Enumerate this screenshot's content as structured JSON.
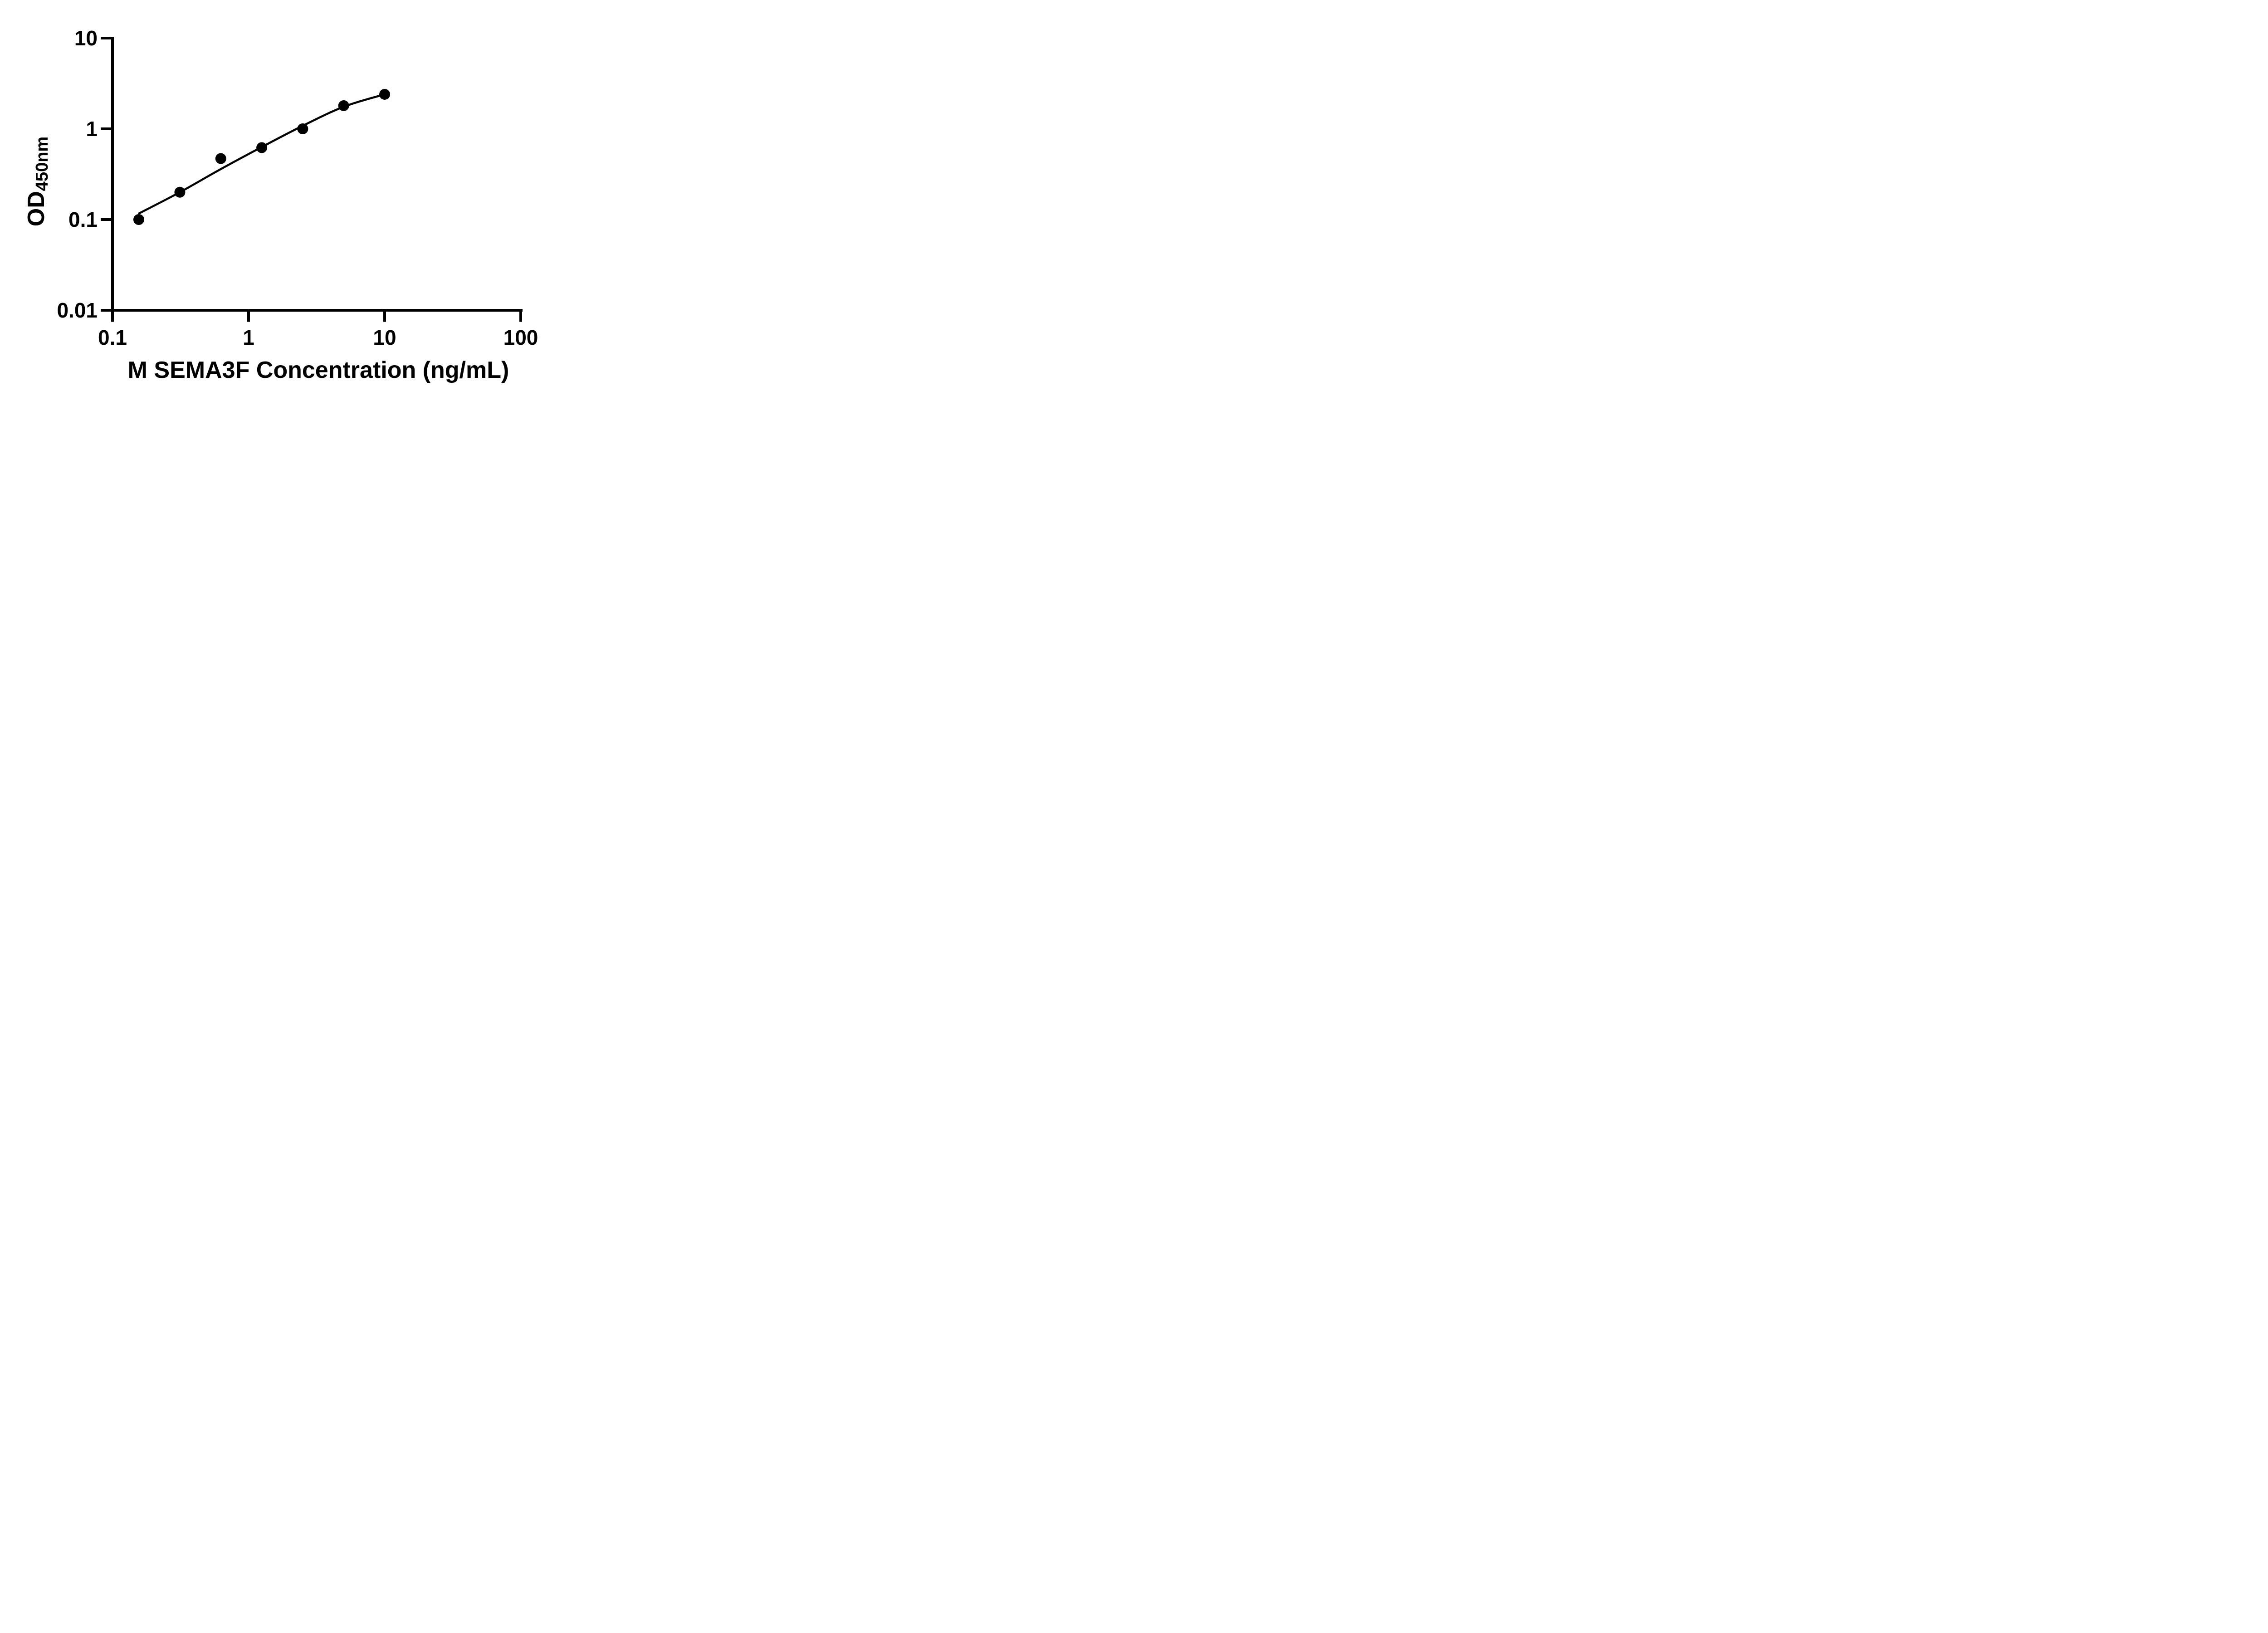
{
  "page": {
    "background": "#ffffff"
  },
  "chart_data": {
    "type": "scatter",
    "subtype": "elisa-standard-curve",
    "title": "",
    "xlabel": "M SEMA3F Concentration (ng/mL)",
    "ylabel": "OD450nm",
    "ylabel_base": "OD",
    "ylabel_sub": "450nm",
    "x_scale": "log10",
    "y_scale": "log10",
    "xlim": [
      0.1,
      100
    ],
    "ylim": [
      0.01,
      10
    ],
    "x_ticks": [
      {
        "v": 0.1,
        "label": "0.1"
      },
      {
        "v": 1,
        "label": "1"
      },
      {
        "v": 10,
        "label": "10"
      },
      {
        "v": 100,
        "label": "100"
      }
    ],
    "y_ticks": [
      {
        "v": 0.01,
        "label": "0.01"
      },
      {
        "v": 0.1,
        "label": "0.1"
      },
      {
        "v": 1,
        "label": "1"
      },
      {
        "v": 10,
        "label": "10"
      }
    ],
    "grid": false,
    "legend": "none",
    "ink_color": "#000000",
    "series": [
      {
        "name": "M SEMA3F standard",
        "marker": "filled-circle",
        "marker_radius_px": 12,
        "x": [
          0.156,
          0.3125,
          0.625,
          1.25,
          2.5,
          5,
          10
        ],
        "y": [
          0.1,
          0.2,
          0.47,
          0.62,
          1.0,
          1.8,
          2.4
        ]
      }
    ],
    "fit_curve": {
      "name": "fitted standard curve",
      "x": [
        0.157,
        0.3125,
        0.625,
        1.25,
        2.5,
        5,
        10
      ],
      "y": [
        0.117,
        0.2,
        0.36,
        0.63,
        1.08,
        1.75,
        2.4
      ]
    }
  }
}
